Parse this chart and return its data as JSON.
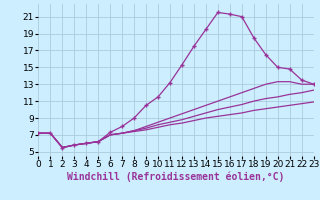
{
  "xlabel": "Windchill (Refroidissement éolien,°C)",
  "bg_color": "#cceeff",
  "grid_color": "#aaccdd",
  "line_color": "#993399",
  "xlim": [
    0,
    23
  ],
  "ylim": [
    4.5,
    22.5
  ],
  "xticks": [
    0,
    1,
    2,
    3,
    4,
    5,
    6,
    7,
    8,
    9,
    10,
    11,
    12,
    13,
    14,
    15,
    16,
    17,
    18,
    19,
    20,
    21,
    22,
    23
  ],
  "yticks": [
    5,
    7,
    9,
    11,
    13,
    15,
    17,
    19,
    21
  ],
  "series": [
    {
      "x": [
        0,
        1,
        2,
        3,
        4,
        5,
        6,
        7,
        8,
        9,
        10,
        11,
        12,
        13,
        14,
        15,
        16,
        17,
        18,
        19,
        20,
        21,
        22,
        23
      ],
      "y": [
        7.2,
        7.2,
        5.5,
        5.8,
        6.0,
        6.2,
        7.3,
        8.0,
        9.0,
        10.5,
        11.5,
        13.2,
        15.3,
        17.5,
        19.5,
        21.5,
        21.3,
        21.0,
        18.5,
        16.5,
        15.0,
        14.8,
        13.5,
        13.0
      ],
      "marker": "+"
    },
    {
      "x": [
        0,
        1,
        2,
        3,
        4,
        5,
        6,
        7,
        8,
        9,
        10,
        11,
        12,
        13,
        14,
        15,
        16,
        17,
        18,
        19,
        20,
        21,
        22,
        23
      ],
      "y": [
        7.2,
        7.2,
        5.5,
        5.8,
        6.0,
        6.2,
        7.0,
        7.2,
        7.5,
        8.0,
        8.5,
        9.0,
        9.5,
        10.0,
        10.5,
        11.0,
        11.5,
        12.0,
        12.5,
        13.0,
        13.3,
        13.3,
        13.0,
        13.0
      ],
      "marker": null
    },
    {
      "x": [
        0,
        1,
        2,
        3,
        4,
        5,
        6,
        7,
        8,
        9,
        10,
        11,
        12,
        13,
        14,
        15,
        16,
        17,
        18,
        19,
        20,
        21,
        22,
        23
      ],
      "y": [
        7.2,
        7.2,
        5.5,
        5.8,
        6.0,
        6.2,
        7.0,
        7.2,
        7.5,
        7.8,
        8.2,
        8.5,
        8.8,
        9.2,
        9.6,
        10.0,
        10.3,
        10.6,
        11.0,
        11.3,
        11.5,
        11.8,
        12.0,
        12.3
      ],
      "marker": null
    },
    {
      "x": [
        0,
        1,
        2,
        3,
        4,
        5,
        6,
        7,
        8,
        9,
        10,
        11,
        12,
        13,
        14,
        15,
        16,
        17,
        18,
        19,
        20,
        21,
        22,
        23
      ],
      "y": [
        7.2,
        7.2,
        5.5,
        5.8,
        6.0,
        6.2,
        7.0,
        7.2,
        7.4,
        7.6,
        7.9,
        8.2,
        8.4,
        8.7,
        9.0,
        9.2,
        9.4,
        9.6,
        9.9,
        10.1,
        10.3,
        10.5,
        10.7,
        10.9
      ],
      "marker": null
    }
  ],
  "xlabel_fontsize": 7,
  "tick_fontsize": 6.5
}
